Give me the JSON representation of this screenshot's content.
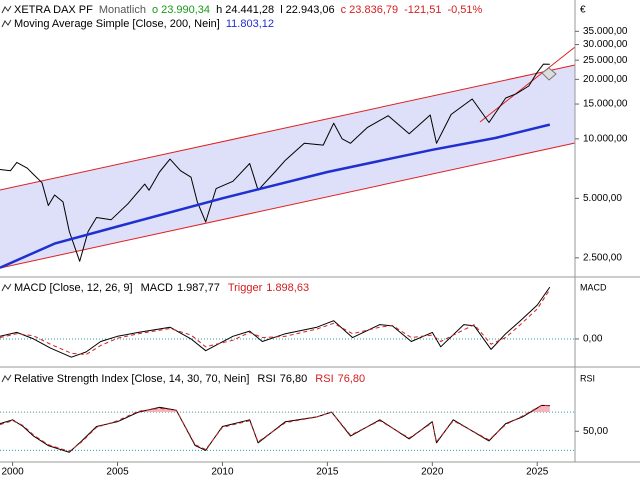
{
  "chart_data": [
    {
      "type": "line",
      "symbol": "XETRA DAX PF",
      "interval": "Monatlich",
      "currency": "€",
      "quote": [
        {
          "label": "o 23.990,34",
          "color": "#1a9a1a"
        },
        {
          "label": "h 24.441,28",
          "color": "#000000"
        },
        {
          "label": "l 22.943,06",
          "color": "#000000"
        },
        {
          "label": "c 23.836,79",
          "color": "#d42020"
        },
        {
          "label": "-121,51",
          "color": "#d42020"
        },
        {
          "label": "-0,51%",
          "color": "#d42020"
        }
      ],
      "log_scale": true,
      "grid": false,
      "xlim": [
        1999.4,
        2026.8
      ],
      "ylim": [
        2000,
        50000
      ],
      "yticks": [
        {
          "value": 2500,
          "label": "2.500,00"
        },
        {
          "value": 5000,
          "label": "5.000,00"
        },
        {
          "value": 10000,
          "label": "10.000,00"
        },
        {
          "value": 15000,
          "label": "15.000,00"
        },
        {
          "value": 20000,
          "label": "20.000,00"
        },
        {
          "value": 25000,
          "label": "25.000,00"
        },
        {
          "value": 30000,
          "label": "30.000,00"
        },
        {
          "value": 35000,
          "label": "35.000,00"
        }
      ],
      "series": [
        {
          "color": "#000000",
          "width": 1,
          "x": [
            1999.4,
            1999.9,
            2000.2,
            2000.7,
            2001.0,
            2001.4,
            2001.7,
            2002.0,
            2002.4,
            2002.7,
            2003.2,
            2003.6,
            2004.0,
            2004.7,
            2005.5,
            2006.3,
            2006.5,
            2007.0,
            2007.5,
            2008.0,
            2008.5,
            2008.8,
            2009.2,
            2009.7,
            2010.5,
            2011.3,
            2011.7,
            2012.5,
            2013.0,
            2013.9,
            2014.8,
            2015.3,
            2015.7,
            2016.1,
            2016.9,
            2017.9,
            2018.9,
            2019.9,
            2020.2,
            2020.9,
            2021.9,
            2022.7,
            2023.5,
            2024.0,
            2024.6,
            2025.0,
            2025.3,
            2025.6
          ],
          "values": [
            7000,
            6900,
            7600,
            7100,
            6600,
            6000,
            4600,
            5200,
            4800,
            3400,
            2400,
            3400,
            4000,
            3900,
            4700,
            5900,
            5500,
            6800,
            7900,
            6900,
            6400,
            4800,
            3800,
            5600,
            6100,
            7500,
            5500,
            6800,
            7800,
            9500,
            9300,
            12000,
            10000,
            9500,
            11400,
            13100,
            10600,
            13200,
            9500,
            13300,
            15900,
            12100,
            16100,
            16900,
            18500,
            21700,
            23900,
            23836.79
          ]
        },
        {
          "name": "Moving Average Simple [Close, 200, Nein]",
          "last_label": "11.803,12",
          "color": "#1f2fd0",
          "width": 2.5,
          "x": [
            1999.4,
            2002.0,
            2005.0,
            2010.0,
            2015.0,
            2020.0,
            2023.0,
            2025.6
          ],
          "values": [
            2230,
            2950,
            3600,
            5000,
            6800,
            8800,
            10100,
            11803.12
          ]
        }
      ]
    },
    {
      "type": "line",
      "title": "MACD [Close, 12, 26, 9]",
      "axis_label": "MACD",
      "grid": true,
      "xlim": [
        1999.4,
        2026.8
      ],
      "ylim": [
        -1000,
        2300
      ],
      "yticks": [
        {
          "value": 0,
          "label": "0,00"
        }
      ],
      "series": [
        {
          "name": "MACD",
          "last_label": "1.987,77",
          "color": "#000000",
          "width": 1,
          "x": [
            1999.4,
            2000.2,
            2001.0,
            2001.8,
            2002.8,
            2003.5,
            2004.2,
            2005.0,
            2006.0,
            2007.5,
            2008.5,
            2009.2,
            2010.5,
            2011.3,
            2011.9,
            2013.0,
            2014.5,
            2015.3,
            2016.2,
            2017.5,
            2018.1,
            2019.0,
            2020.0,
            2020.4,
            2021.5,
            2022.0,
            2022.8,
            2023.5,
            2024.2,
            2025.0,
            2025.6
          ],
          "values": [
            100,
            250,
            0,
            -350,
            -700,
            -500,
            -100,
            100,
            250,
            450,
            0,
            -450,
            100,
            300,
            -100,
            200,
            450,
            700,
            50,
            550,
            500,
            -100,
            250,
            -300,
            550,
            500,
            -400,
            200,
            700,
            1300,
            1987.77
          ]
        },
        {
          "name": "Trigger",
          "last_label": "1.898,63",
          "color": "#d42020",
          "width": 1,
          "dashed": true,
          "x": [
            1999.4,
            2000.2,
            2001.0,
            2001.8,
            2002.8,
            2003.5,
            2004.2,
            2005.0,
            2006.0,
            2007.5,
            2008.5,
            2009.2,
            2010.5,
            2011.3,
            2011.9,
            2013.0,
            2014.5,
            2015.3,
            2016.2,
            2017.5,
            2018.1,
            2019.0,
            2020.0,
            2020.4,
            2021.5,
            2022.0,
            2022.8,
            2023.5,
            2024.2,
            2025.0,
            2025.6
          ],
          "values": [
            50,
            200,
            120,
            -200,
            -550,
            -600,
            -250,
            30,
            200,
            400,
            150,
            -300,
            -50,
            250,
            50,
            100,
            380,
            600,
            200,
            450,
            520,
            50,
            150,
            -100,
            350,
            550,
            -200,
            50,
            550,
            1150,
            1898.63
          ]
        }
      ]
    },
    {
      "type": "line",
      "title": "Relative Strength Index [Close, 14, 30, 70, Nein]",
      "axis_label": "RSI",
      "grid": false,
      "xlim": [
        1999.4,
        2026.8
      ],
      "ylim": [
        20,
        114
      ],
      "yticks": [
        {
          "value": 50,
          "label": "50,00"
        }
      ],
      "levels": [
        30,
        70
      ],
      "xticks": [
        2000,
        2005,
        2010,
        2015,
        2020,
        2025
      ],
      "series": [
        {
          "name": "RSI",
          "last_label": "76,80",
          "color": "#000000",
          "width": 1,
          "x": [
            1999.4,
            2000.0,
            2000.5,
            2001.0,
            2001.7,
            2002.7,
            2003.3,
            2004.0,
            2005.0,
            2006.0,
            2007.0,
            2007.8,
            2008.7,
            2009.2,
            2010.0,
            2011.3,
            2011.7,
            2013.0,
            2014.5,
            2015.2,
            2016.1,
            2017.5,
            2018.9,
            2020.0,
            2020.2,
            2021.0,
            2022.7,
            2023.5,
            2024.3,
            2025.2,
            2025.6
          ],
          "values": [
            58,
            62,
            55,
            45,
            35,
            28,
            40,
            55,
            60,
            70,
            75,
            72,
            35,
            30,
            55,
            62,
            38,
            60,
            65,
            70,
            45,
            62,
            42,
            60,
            38,
            62,
            40,
            58,
            65,
            77,
            76.8
          ]
        },
        {
          "name": "RSI",
          "last_label": "76,80",
          "color": "#d42020",
          "width": 1,
          "dashed": true,
          "x": [
            1999.4,
            2000.0,
            2000.5,
            2001.0,
            2001.7,
            2002.7,
            2003.3,
            2004.0,
            2005.0,
            2006.0,
            2007.0,
            2007.8,
            2008.7,
            2009.2,
            2010.0,
            2011.3,
            2011.7,
            2013.0,
            2014.5,
            2015.2,
            2016.1,
            2017.5,
            2018.9,
            2020.0,
            2020.2,
            2021.0,
            2022.7,
            2023.5,
            2024.3,
            2025.2,
            2025.6
          ],
          "values": [
            57,
            61,
            56,
            46,
            36,
            29,
            39,
            54,
            61,
            71,
            74,
            72,
            36,
            31,
            54,
            61,
            39,
            59,
            65,
            70,
            46,
            61,
            43,
            59,
            39,
            61,
            41,
            57,
            66,
            77,
            76.8
          ]
        }
      ]
    }
  ]
}
